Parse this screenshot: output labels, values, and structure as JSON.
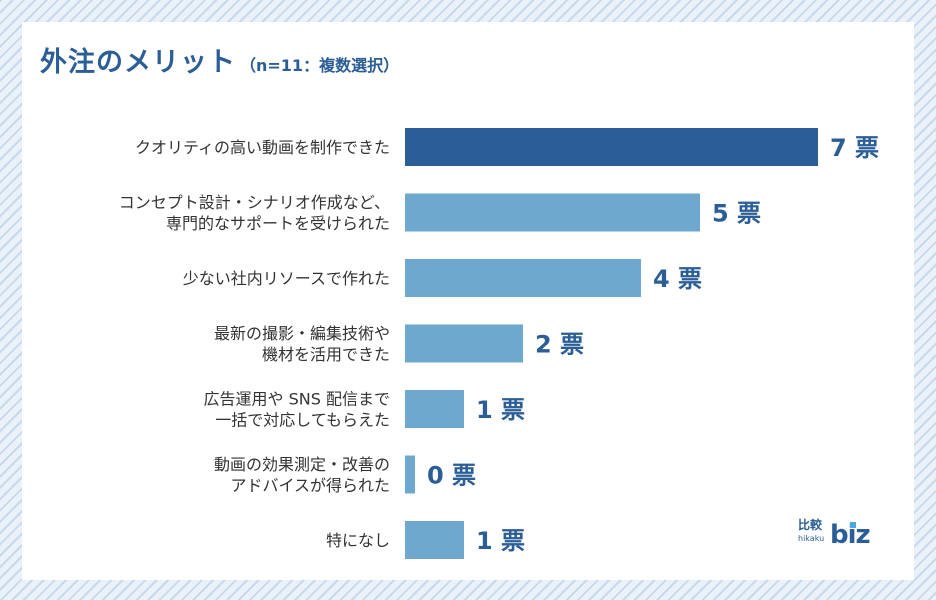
{
  "title": "外注のメリット",
  "subtitle": "（n=11：複数選択）",
  "colors": {
    "highlight_bar": "#2b5e96",
    "bar": "#6ea8cf",
    "text": "#333333",
    "value": "#2b5e96"
  },
  "logo": {
    "kanji": "比較",
    "roman": "hikaku",
    "biz": "biz"
  },
  "chart_data": {
    "type": "bar",
    "orientation": "horizontal",
    "title": "外注のメリット",
    "value_suffix": " 票",
    "xlim": [
      0,
      7
    ],
    "grid": false,
    "legend": "none",
    "categories": [
      [
        "クオリティの高い動画を制作できた"
      ],
      [
        "コンセプト設計・シナリオ作成など、",
        "専門的なサポートを受けられた"
      ],
      [
        "少ない社内リソースで作れた"
      ],
      [
        "最新の撮影・編集技術や",
        "機材を活用できた"
      ],
      [
        "広告運用や SNS 配信まで",
        "一括で対応してもらえた"
      ],
      [
        "動画の効果測定・改善の",
        "アドバイスが得られた"
      ],
      [
        "特になし"
      ]
    ],
    "values": [
      7,
      5,
      4,
      2,
      1,
      0,
      1
    ],
    "highlight_index": 0
  }
}
